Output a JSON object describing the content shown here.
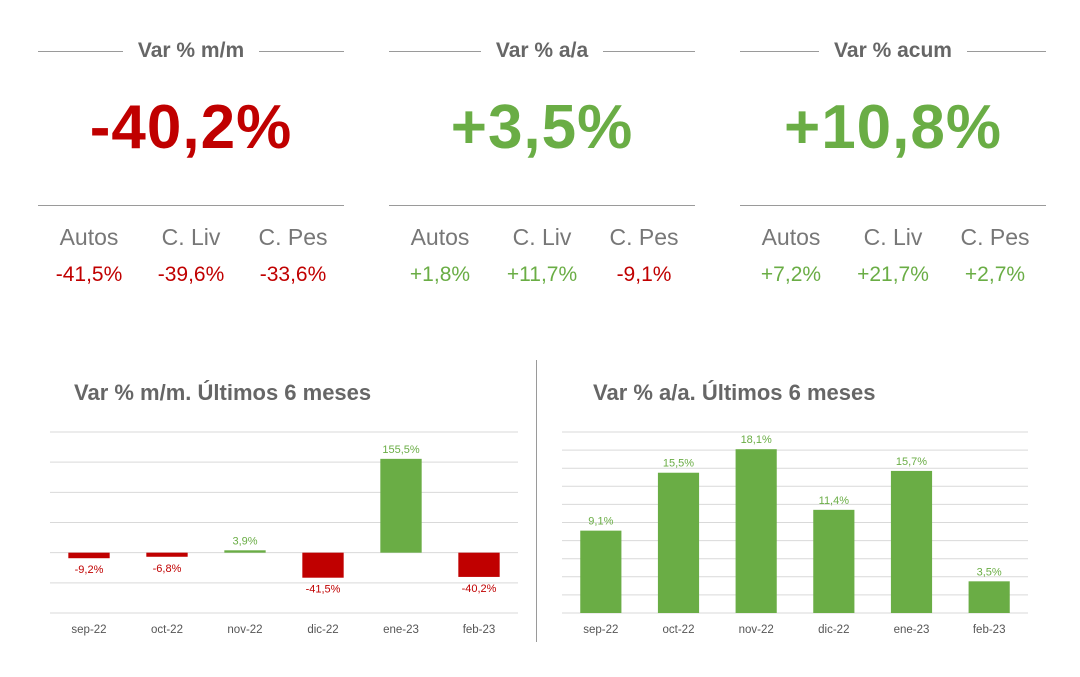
{
  "kpis": [
    {
      "title": "Var % m/m",
      "value": "-40,2%",
      "value_color": "#c00000",
      "subs": [
        {
          "label": "Autos",
          "value": "-41,5%",
          "color": "#c00000"
        },
        {
          "label": "C. Liv",
          "value": "-39,6%",
          "color": "#c00000"
        },
        {
          "label": "C. Pes",
          "value": "-33,6%",
          "color": "#c00000"
        }
      ]
    },
    {
      "title": "Var % a/a",
      "value": "+3,5%",
      "value_color": "#6aad45",
      "subs": [
        {
          "label": "Autos",
          "value": "+1,8%",
          "color": "#6aad45"
        },
        {
          "label": "C. Liv",
          "value": "+11,7%",
          "color": "#6aad45"
        },
        {
          "label": "C. Pes",
          "value": "-9,1%",
          "color": "#c00000"
        }
      ]
    },
    {
      "title": "Var % acum",
      "value": "+10,8%",
      "value_color": "#6aad45",
      "subs": [
        {
          "label": "Autos",
          "value": "+7,2%",
          "color": "#6aad45"
        },
        {
          "label": "C. Liv",
          "value": "+21,7%",
          "color": "#6aad45"
        },
        {
          "label": "C. Pes",
          "value": "+2,7%",
          "color": "#6aad45"
        }
      ]
    }
  ],
  "colors": {
    "positive": "#6aad45",
    "negative": "#c00000",
    "grid": "#d9d9d9"
  },
  "chart_data": [
    {
      "type": "bar",
      "title": "Var % m/m. Últimos 6 meses",
      "categories": [
        "sep-22",
        "oct-22",
        "nov-22",
        "dic-22",
        "ene-23",
        "feb-23"
      ],
      "values": [
        -9.2,
        -6.8,
        3.9,
        -41.5,
        155.5,
        -40.2
      ],
      "data_labels": [
        "-9,2%",
        "-6,8%",
        "3,9%",
        "-41,5%",
        "155,5%",
        "-40,2%"
      ],
      "ylim": [
        -100,
        200
      ],
      "grid": true,
      "legend": "none"
    },
    {
      "type": "bar",
      "title": "Var % a/a. Últimos 6 meses",
      "categories": [
        "sep-22",
        "oct-22",
        "nov-22",
        "dic-22",
        "ene-23",
        "feb-23"
      ],
      "values": [
        9.1,
        15.5,
        18.1,
        11.4,
        15.7,
        3.5
      ],
      "data_labels": [
        "9,1%",
        "15,5%",
        "18,1%",
        "11,4%",
        "15,7%",
        "3,5%"
      ],
      "ylim": [
        0,
        20
      ],
      "grid": true,
      "legend": "none"
    }
  ]
}
